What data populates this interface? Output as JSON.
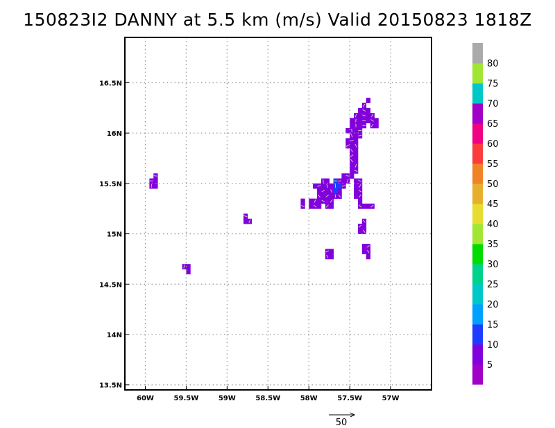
{
  "chart_data": {
    "type": "heatmap",
    "title": "150823I2 DANNY at 5.5 km (m/s) Valid 20150823 1818Z",
    "xlim": [
      -60.25,
      -56.5
    ],
    "ylim": [
      13.45,
      16.95
    ],
    "x_ticks": [
      {
        "value": -60.0,
        "label": "60W"
      },
      {
        "value": -59.5,
        "label": "59.5W"
      },
      {
        "value": -59.0,
        "label": "59W"
      },
      {
        "value": -58.5,
        "label": "58.5W"
      },
      {
        "value": -58.0,
        "label": "58W"
      },
      {
        "value": -57.5,
        "label": "57.5W"
      },
      {
        "value": -57.0,
        "label": "57W"
      }
    ],
    "y_ticks": [
      {
        "value": 13.5,
        "label": "13.5N"
      },
      {
        "value": 14.0,
        "label": "14N"
      },
      {
        "value": 14.5,
        "label": "14.5N"
      },
      {
        "value": 15.0,
        "label": "15N"
      },
      {
        "value": 15.5,
        "label": "15.5N"
      },
      {
        "value": 16.0,
        "label": "16N"
      },
      {
        "value": 16.5,
        "label": "16.5N"
      }
    ],
    "grid": true,
    "cell_size_deg": 0.05,
    "colorbar": {
      "levels": [
        "5",
        "10",
        "15",
        "20",
        "25",
        "30",
        "35",
        "40",
        "45",
        "50",
        "55",
        "60",
        "65",
        "70",
        "75",
        "80"
      ],
      "colors": [
        "#a000c8",
        "#8200dc",
        "#1e3cff",
        "#00a0ff",
        "#00c8c8",
        "#00d28c",
        "#00dc00",
        "#a0e632",
        "#e6dc32",
        "#e6af2d",
        "#f08228",
        "#fa3c3c",
        "#f00082",
        "#a000c8",
        "#00c8c8",
        "#a0e632",
        "#aaaaaa"
      ]
    },
    "reference_vector": {
      "magnitude": 50,
      "label": "50"
    },
    "cells": [
      [
        -59.925,
        15.525,
        1
      ],
      [
        -59.875,
        15.525,
        1
      ],
      [
        -59.925,
        15.475,
        1
      ],
      [
        -59.875,
        15.475,
        1
      ],
      [
        -59.875,
        15.575,
        1
      ],
      [
        -59.475,
        14.675,
        1
      ],
      [
        -59.525,
        14.675,
        1
      ],
      [
        -59.475,
        14.625,
        1
      ],
      [
        -58.775,
        15.175,
        1
      ],
      [
        -58.775,
        15.125,
        1
      ],
      [
        -58.725,
        15.125,
        1
      ],
      [
        -58.075,
        15.325,
        1
      ],
      [
        -58.075,
        15.275,
        1
      ],
      [
        -57.975,
        15.325,
        1
      ],
      [
        -57.925,
        15.325,
        1
      ],
      [
        -57.875,
        15.325,
        1
      ],
      [
        -57.825,
        15.325,
        1
      ],
      [
        -57.775,
        15.325,
        1
      ],
      [
        -57.725,
        15.325,
        1
      ],
      [
        -57.975,
        15.275,
        1
      ],
      [
        -57.925,
        15.275,
        1
      ],
      [
        -57.875,
        15.275,
        1
      ],
      [
        -57.775,
        15.275,
        1
      ],
      [
        -57.725,
        15.275,
        1
      ],
      [
        -57.875,
        15.375,
        1
      ],
      [
        -57.825,
        15.375,
        1
      ],
      [
        -57.775,
        15.375,
        1
      ],
      [
        -57.725,
        15.375,
        1
      ],
      [
        -57.625,
        15.375,
        1
      ],
      [
        -57.875,
        15.425,
        1
      ],
      [
        -57.825,
        15.425,
        1
      ],
      [
        -57.775,
        15.425,
        1
      ],
      [
        -57.725,
        15.425,
        1
      ],
      [
        -57.625,
        15.425,
        1
      ],
      [
        -57.875,
        15.475,
        1
      ],
      [
        -57.825,
        15.475,
        1
      ],
      [
        -57.775,
        15.475,
        1
      ],
      [
        -57.725,
        15.475,
        1
      ],
      [
        -57.575,
        15.475,
        1
      ],
      [
        -57.925,
        15.475,
        1
      ],
      [
        -57.825,
        15.525,
        1
      ],
      [
        -57.775,
        15.525,
        1
      ],
      [
        -57.625,
        15.525,
        1
      ],
      [
        -57.575,
        15.525,
        1
      ],
      [
        -57.675,
        15.475,
        2
      ],
      [
        -57.675,
        15.425,
        2
      ],
      [
        -57.675,
        15.525,
        2
      ],
      [
        -57.625,
        15.475,
        2
      ],
      [
        -57.675,
        15.375,
        1
      ],
      [
        -57.575,
        15.575,
        1
      ],
      [
        -57.525,
        15.575,
        1
      ],
      [
        -57.475,
        15.575,
        1
      ],
      [
        -57.525,
        15.525,
        1
      ],
      [
        -57.475,
        15.625,
        1
      ],
      [
        -57.425,
        15.625,
        1
      ],
      [
        -57.475,
        15.675,
        1
      ],
      [
        -57.425,
        15.675,
        1
      ],
      [
        -57.425,
        15.525,
        1
      ],
      [
        -57.375,
        15.525,
        1
      ],
      [
        -57.425,
        15.475,
        1
      ],
      [
        -57.375,
        15.475,
        1
      ],
      [
        -57.425,
        15.425,
        1
      ],
      [
        -57.375,
        15.425,
        1
      ],
      [
        -57.425,
        15.375,
        1
      ],
      [
        -57.375,
        15.375,
        1
      ],
      [
        -57.375,
        15.325,
        1
      ],
      [
        -57.375,
        15.275,
        1
      ],
      [
        -57.275,
        15.275,
        1
      ],
      [
        -57.225,
        15.275,
        1
      ],
      [
        -57.325,
        15.275,
        1
      ],
      [
        -57.475,
        15.725,
        1
      ],
      [
        -57.425,
        15.725,
        1
      ],
      [
        -57.475,
        15.775,
        1
      ],
      [
        -57.425,
        15.775,
        1
      ],
      [
        -57.475,
        15.825,
        1
      ],
      [
        -57.425,
        15.825,
        1
      ],
      [
        -57.525,
        15.875,
        1
      ],
      [
        -57.475,
        15.875,
        1
      ],
      [
        -57.425,
        15.875,
        1
      ],
      [
        -57.525,
        15.925,
        1
      ],
      [
        -57.475,
        15.925,
        1
      ],
      [
        -57.425,
        15.925,
        1
      ],
      [
        -57.475,
        15.975,
        1
      ],
      [
        -57.425,
        15.975,
        1
      ],
      [
        -57.375,
        15.975,
        1
      ],
      [
        -57.525,
        16.025,
        1
      ],
      [
        -57.475,
        16.025,
        1
      ],
      [
        -57.425,
        16.025,
        1
      ],
      [
        -57.375,
        16.025,
        1
      ],
      [
        -57.475,
        16.075,
        1
      ],
      [
        -57.425,
        16.075,
        1
      ],
      [
        -57.375,
        16.075,
        1
      ],
      [
        -57.325,
        16.075,
        1
      ],
      [
        -57.475,
        16.125,
        1
      ],
      [
        -57.425,
        16.125,
        1
      ],
      [
        -57.375,
        16.125,
        1
      ],
      [
        -57.325,
        16.125,
        1
      ],
      [
        -57.275,
        16.125,
        1
      ],
      [
        -57.425,
        16.175,
        1
      ],
      [
        -57.375,
        16.175,
        1
      ],
      [
        -57.325,
        16.175,
        1
      ],
      [
        -57.275,
        16.175,
        1
      ],
      [
        -57.225,
        16.175,
        1
      ],
      [
        -57.375,
        16.225,
        1
      ],
      [
        -57.325,
        16.225,
        1
      ],
      [
        -57.275,
        16.225,
        1
      ],
      [
        -57.325,
        16.275,
        1
      ],
      [
        -57.275,
        16.325,
        1
      ],
      [
        -57.225,
        16.125,
        1
      ],
      [
        -57.175,
        16.125,
        1
      ],
      [
        -57.225,
        16.075,
        1
      ],
      [
        -57.175,
        16.075,
        1
      ],
      [
        -57.325,
        15.125,
        1
      ],
      [
        -57.325,
        15.075,
        1
      ],
      [
        -57.375,
        15.075,
        1
      ],
      [
        -57.375,
        15.025,
        1
      ],
      [
        -57.325,
        15.025,
        1
      ],
      [
        -57.325,
        14.875,
        1
      ],
      [
        -57.275,
        14.875,
        1
      ],
      [
        -57.325,
        14.825,
        1
      ],
      [
        -57.275,
        14.825,
        1
      ],
      [
        -57.275,
        14.775,
        1
      ],
      [
        -57.775,
        14.825,
        1
      ],
      [
        -57.725,
        14.825,
        1
      ],
      [
        -57.775,
        14.775,
        1
      ],
      [
        -57.725,
        14.775,
        1
      ]
    ]
  }
}
